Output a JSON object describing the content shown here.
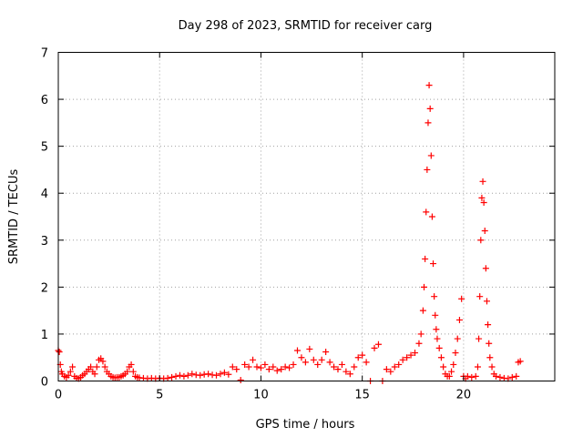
{
  "chart_data": {
    "type": "scatter",
    "title": "Day 298 of 2023, SRMTID for receiver carg",
    "xlabel": "GPS time / hours",
    "ylabel": "SRMTID / TECUs",
    "xlim": [
      0,
      24.5
    ],
    "ylim": [
      0,
      7
    ],
    "x_ticks": [
      0,
      5,
      10,
      15,
      20
    ],
    "y_ticks": [
      0,
      1,
      2,
      3,
      4,
      5,
      6,
      7
    ],
    "grid": true,
    "marker": "+",
    "color": "#ff0000",
    "series": [
      {
        "name": "SRMTID",
        "x": [
          0.0,
          0.05,
          0.1,
          0.15,
          0.2,
          0.3,
          0.4,
          0.5,
          0.6,
          0.7,
          0.8,
          0.9,
          1.0,
          1.1,
          1.2,
          1.3,
          1.4,
          1.5,
          1.6,
          1.7,
          1.8,
          1.9,
          2.0,
          2.1,
          2.2,
          2.3,
          2.4,
          2.5,
          2.6,
          2.7,
          2.8,
          2.9,
          3.0,
          3.1,
          3.2,
          3.3,
          3.4,
          3.5,
          3.6,
          3.7,
          3.8,
          3.9,
          4.0,
          4.2,
          4.4,
          4.6,
          4.8,
          5.0,
          5.2,
          5.4,
          5.6,
          5.8,
          6.0,
          6.2,
          6.4,
          6.6,
          6.8,
          7.0,
          7.2,
          7.4,
          7.6,
          7.8,
          8.0,
          8.2,
          8.4,
          8.6,
          8.8,
          9.0,
          9.2,
          9.4,
          9.6,
          9.8,
          10.0,
          10.2,
          10.4,
          10.6,
          10.8,
          11.0,
          11.2,
          11.4,
          11.6,
          11.8,
          12.0,
          12.2,
          12.4,
          12.6,
          12.8,
          13.0,
          13.2,
          13.4,
          13.6,
          13.8,
          14.0,
          14.2,
          14.4,
          14.6,
          14.8,
          15.0,
          15.2,
          15.4,
          15.6,
          15.8,
          16.0,
          16.2,
          16.4,
          16.6,
          16.8,
          17.0,
          17.2,
          17.4,
          17.6,
          17.8,
          17.9,
          18.0,
          18.05,
          18.1,
          18.15,
          18.2,
          18.25,
          18.3,
          18.35,
          18.4,
          18.45,
          18.5,
          18.55,
          18.6,
          18.65,
          18.7,
          18.8,
          18.9,
          19.0,
          19.1,
          19.2,
          19.3,
          19.4,
          19.5,
          19.6,
          19.7,
          19.8,
          19.9,
          20.0,
          20.1,
          20.2,
          20.4,
          20.6,
          20.7,
          20.75,
          20.8,
          20.85,
          20.9,
          20.95,
          21.0,
          21.05,
          21.1,
          21.15,
          21.2,
          21.25,
          21.3,
          21.4,
          21.5,
          21.6,
          21.8,
          22.0,
          22.2,
          22.4,
          22.6,
          22.7,
          22.8
        ],
        "y": [
          0.65,
          0.62,
          0.35,
          0.2,
          0.15,
          0.1,
          0.08,
          0.12,
          0.2,
          0.3,
          0.1,
          0.06,
          0.05,
          0.08,
          0.12,
          0.15,
          0.2,
          0.25,
          0.3,
          0.2,
          0.15,
          0.3,
          0.45,
          0.48,
          0.42,
          0.3,
          0.2,
          0.15,
          0.1,
          0.08,
          0.07,
          0.08,
          0.08,
          0.1,
          0.12,
          0.15,
          0.2,
          0.3,
          0.35,
          0.2,
          0.1,
          0.08,
          0.07,
          0.06,
          0.05,
          0.06,
          0.05,
          0.06,
          0.05,
          0.06,
          0.08,
          0.1,
          0.12,
          0.1,
          0.12,
          0.15,
          0.13,
          0.12,
          0.14,
          0.15,
          0.13,
          0.12,
          0.15,
          0.18,
          0.14,
          0.3,
          0.25,
          0.02,
          0.35,
          0.3,
          0.45,
          0.3,
          0.28,
          0.35,
          0.25,
          0.3,
          0.22,
          0.25,
          0.3,
          0.28,
          0.35,
          0.65,
          0.5,
          0.4,
          0.68,
          0.45,
          0.35,
          0.45,
          0.62,
          0.4,
          0.3,
          0.25,
          0.35,
          0.2,
          0.15,
          0.3,
          0.5,
          0.55,
          0.4,
          0.0,
          0.7,
          0.78,
          0.0,
          0.25,
          0.2,
          0.3,
          0.35,
          0.45,
          0.5,
          0.55,
          0.6,
          0.8,
          1.0,
          1.5,
          2.0,
          2.6,
          3.6,
          4.5,
          5.5,
          6.3,
          5.8,
          4.8,
          3.5,
          2.5,
          1.8,
          1.4,
          1.1,
          0.9,
          0.7,
          0.5,
          0.3,
          0.15,
          0.1,
          0.1,
          0.2,
          0.35,
          0.6,
          0.9,
          1.3,
          1.75,
          0.1,
          0.05,
          0.1,
          0.08,
          0.1,
          0.3,
          0.9,
          1.8,
          3.0,
          3.9,
          4.25,
          3.8,
          3.2,
          2.4,
          1.7,
          1.2,
          0.8,
          0.5,
          0.3,
          0.15,
          0.1,
          0.08,
          0.06,
          0.05,
          0.08,
          0.1,
          0.4,
          0.42
        ]
      }
    ]
  }
}
